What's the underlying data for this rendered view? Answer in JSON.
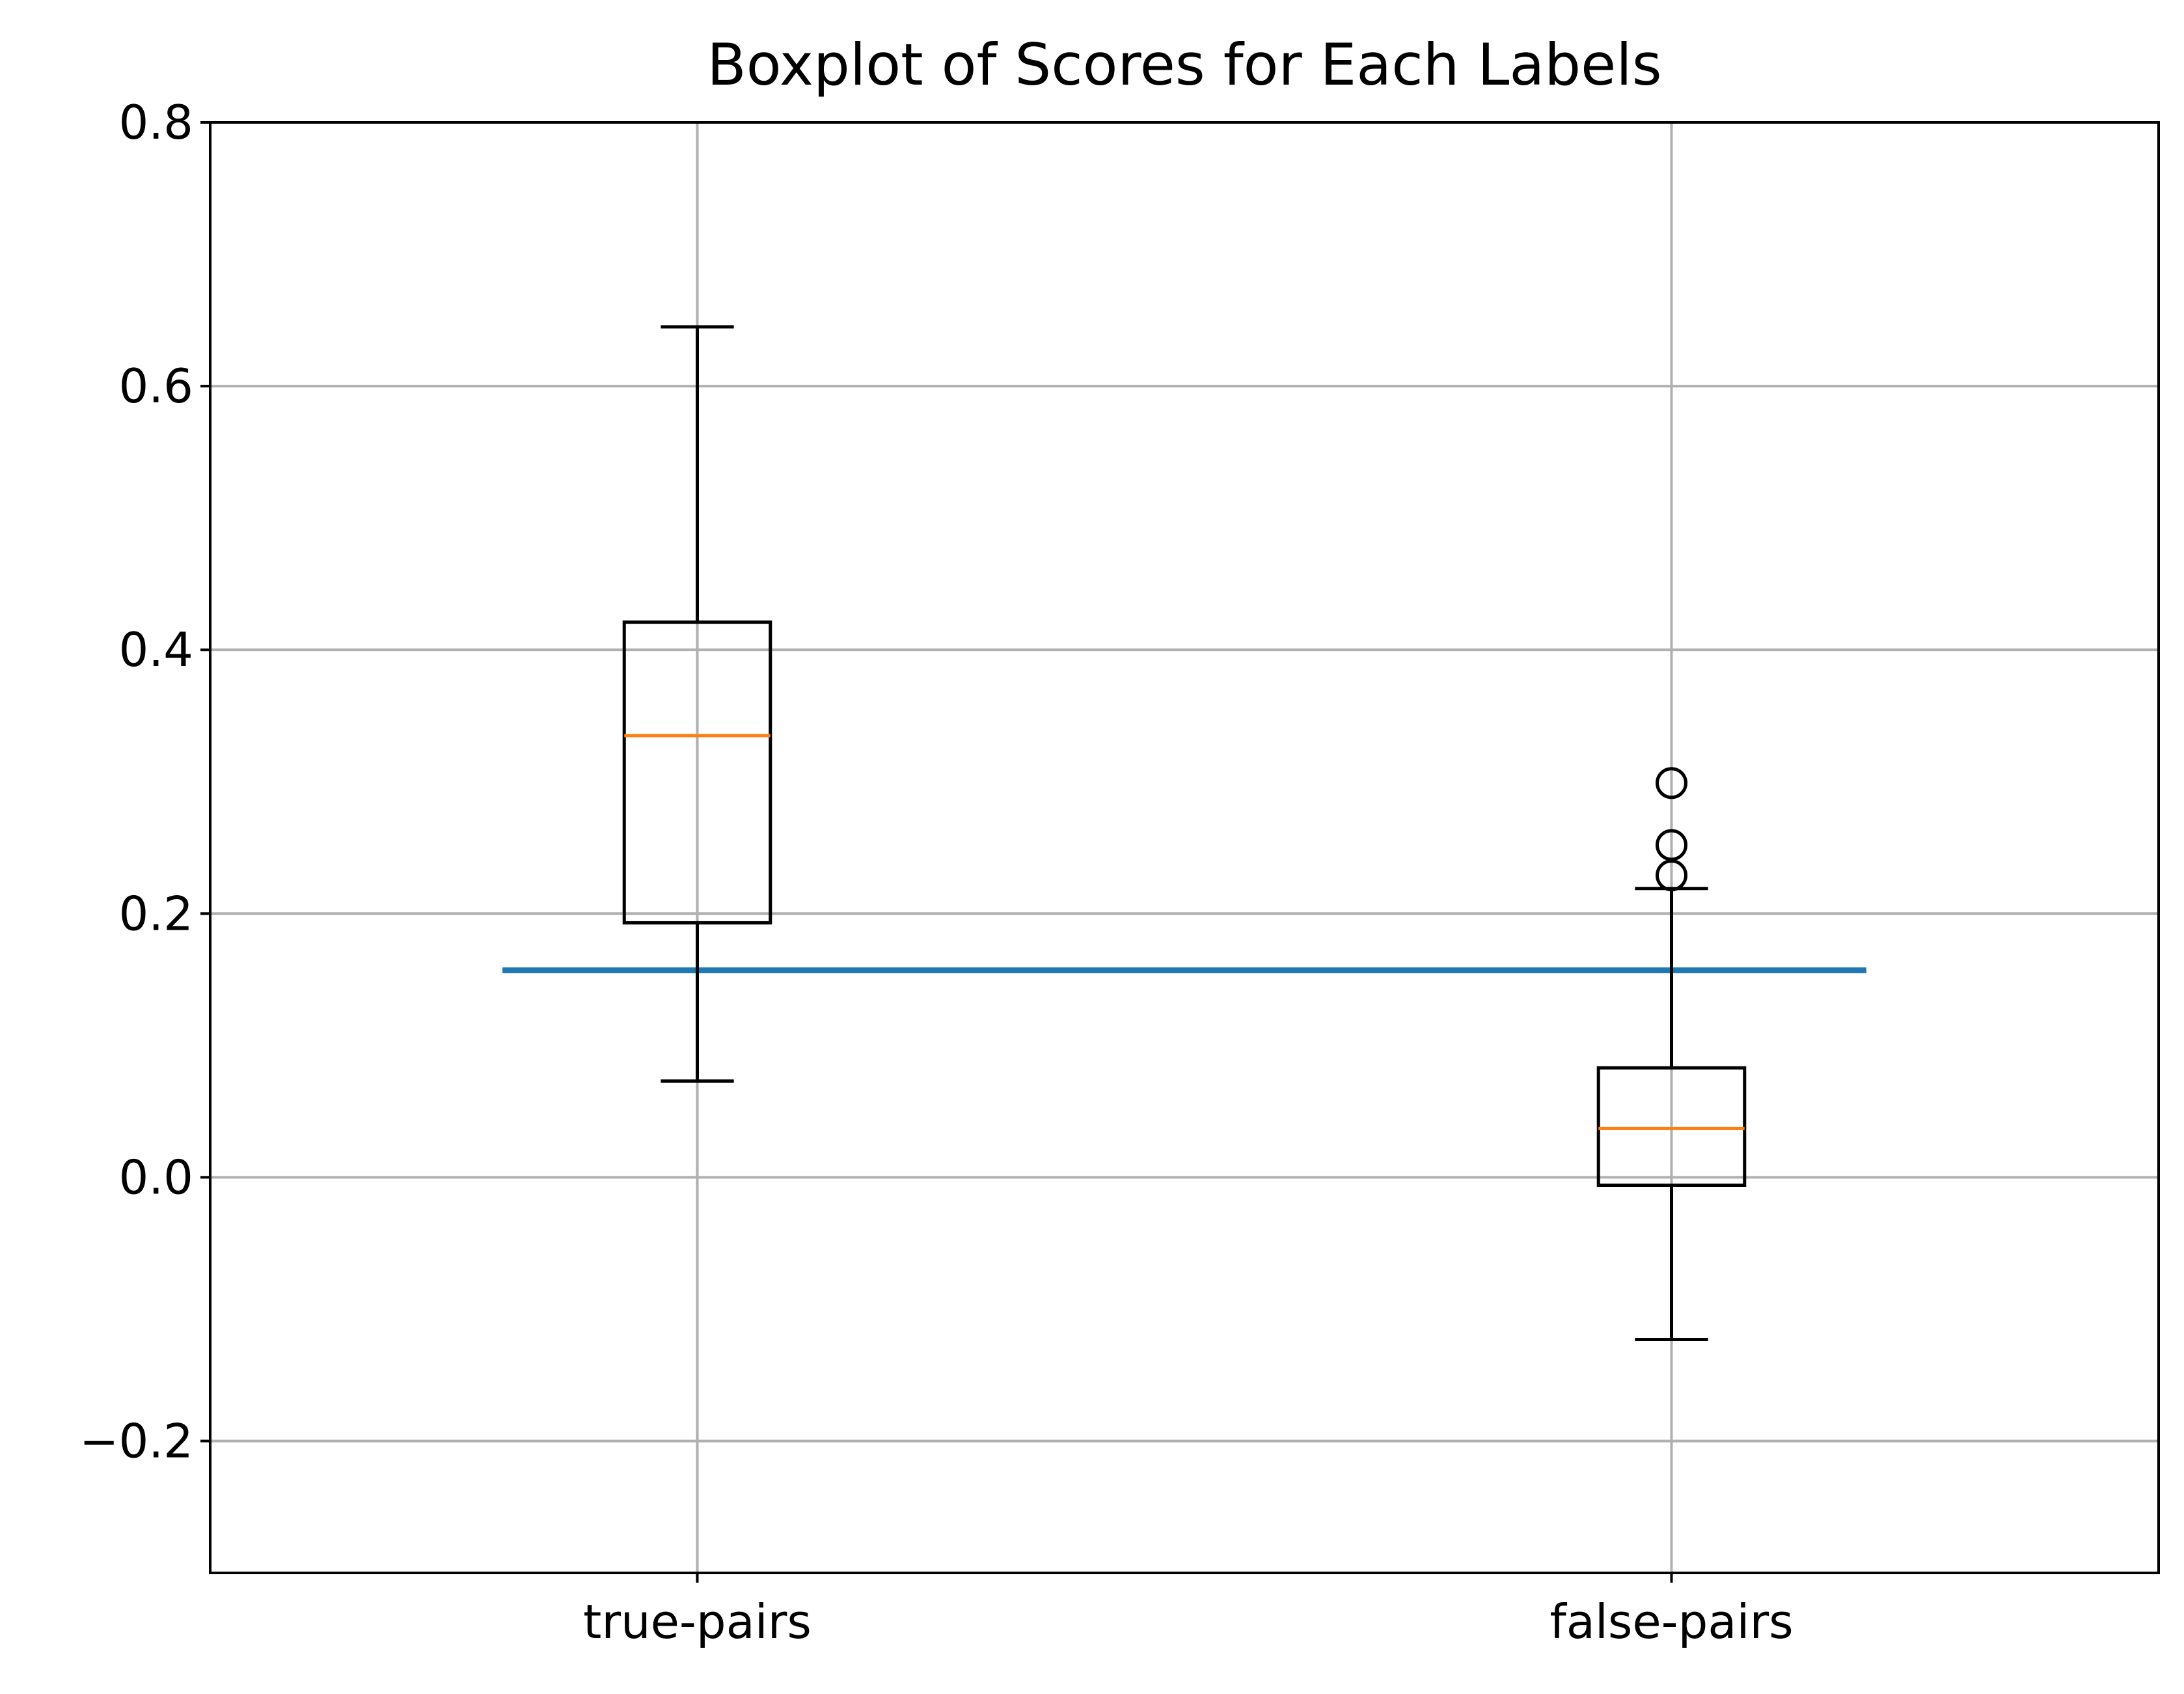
{
  "chart_data": {
    "type": "boxplot",
    "title": "Boxplot of Scores for Each Labels",
    "xlabel": "",
    "ylabel": "",
    "ylim": [
      -0.3,
      0.8
    ],
    "yticks": [
      -0.2,
      0.0,
      0.2,
      0.4,
      0.6,
      0.8
    ],
    "ytick_labels": [
      "−0.2",
      "0.0",
      "0.2",
      "0.4",
      "0.6",
      "0.8"
    ],
    "categories": [
      "true-pairs",
      "false-pairs"
    ],
    "boxes": [
      {
        "label": "true-pairs",
        "whisker_low": 0.073,
        "q1": 0.193,
        "median": 0.335,
        "q3": 0.421,
        "whisker_high": 0.645,
        "outliers": []
      },
      {
        "label": "false-pairs",
        "whisker_low": -0.123,
        "q1": -0.006,
        "median": 0.037,
        "q3": 0.083,
        "whisker_high": 0.219,
        "outliers": [
          0.229,
          0.252,
          0.299
        ]
      }
    ],
    "threshold_line": {
      "y": 0.157,
      "x_start": 0.8,
      "x_end": 2.2
    },
    "grid": true,
    "colors": {
      "box": "#000000",
      "median": "#ff7f0e",
      "threshold": "#1f77b4",
      "grid": "#b0b0b0"
    }
  }
}
